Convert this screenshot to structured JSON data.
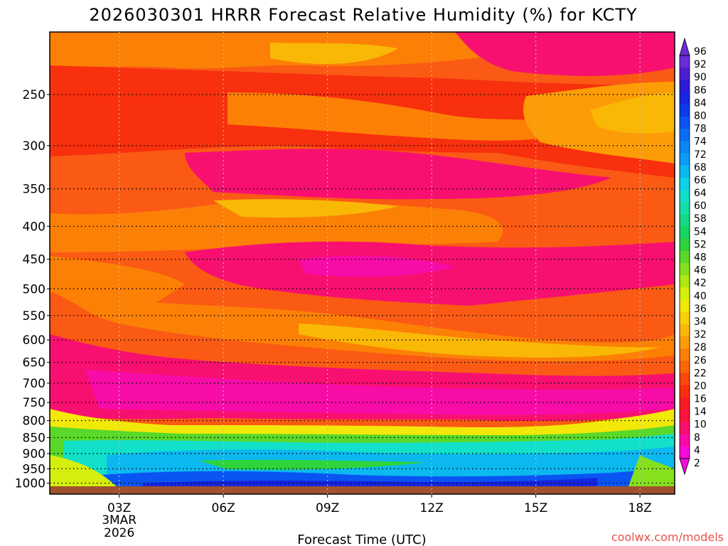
{
  "chart_data": {
    "type": "heatmap",
    "title": "2026030301 HRRR Forecast Relative Humidity (%) for KCTY",
    "xlabel": "Forecast Time (UTC)",
    "ylabel": "",
    "x_ticks": [
      {
        "label": "03Z",
        "hour": 3,
        "sub1": "3MAR",
        "sub2": "2026"
      },
      {
        "label": "06Z",
        "hour": 6
      },
      {
        "label": "09Z",
        "hour": 9
      },
      {
        "label": "12Z",
        "hour": 12
      },
      {
        "label": "15Z",
        "hour": 15
      },
      {
        "label": "18Z",
        "hour": 18
      }
    ],
    "xlim": [
      1,
      19
    ],
    "y_scale": "log",
    "ylim": [
      1040,
      200
    ],
    "y_ticks": [
      "250",
      "300",
      "350",
      "400",
      "450",
      "500",
      "550",
      "600",
      "650",
      "700",
      "750",
      "800",
      "850",
      "900",
      "950",
      "1000"
    ],
    "grid": true,
    "colorbar": {
      "position": "right",
      "labels": [
        "96",
        "92",
        "90",
        "86",
        "84",
        "80",
        "78",
        "74",
        "72",
        "68",
        "66",
        "64",
        "60",
        "58",
        "54",
        "52",
        "48",
        "46",
        "42",
        "40",
        "36",
        "34",
        "32",
        "28",
        "26",
        "22",
        "20",
        "16",
        "14",
        "10",
        "8",
        "4",
        "2"
      ],
      "colors": [
        "#6a2cd8",
        "#4b1fd0",
        "#2e1bd6",
        "#1726e0",
        "#0a3cea",
        "#0a55f2",
        "#0b6ef5",
        "#0c85f5",
        "#0c9cf2",
        "#0cb8f0",
        "#0ed2e8",
        "#12e0c8",
        "#14e0a6",
        "#16d884",
        "#18d462",
        "#2fd43c",
        "#5ad82a",
        "#86e01e",
        "#b0e814",
        "#d6ee0e",
        "#f2e80a",
        "#f8d008",
        "#fab806",
        "#fc9c06",
        "#fc8006",
        "#fc6408",
        "#fa480a",
        "#f8300e",
        "#f81c24",
        "#f8143c",
        "#f81070",
        "#f80ca8",
        "#f40cd8"
      ]
    },
    "series": []
  },
  "credit": "coolwx.com/models"
}
